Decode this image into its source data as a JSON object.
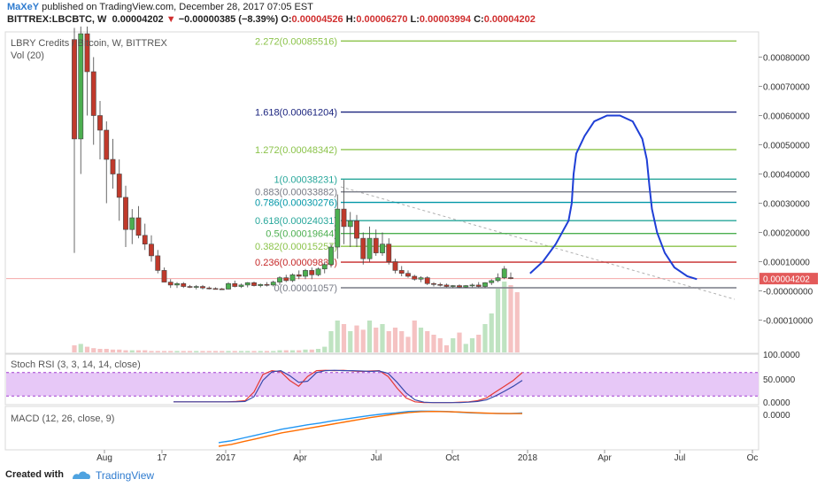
{
  "header": {
    "author": "MaXeY",
    "published": "published on TradingView.com, December 28, 2017 07:05 EST",
    "symbol": "BITTREX:LBCBTC, W",
    "last": "0.00004202",
    "arrow": "▼",
    "change": "−0.00000385 (−8.39%)",
    "o_label": "O:",
    "o": "0.00004526",
    "h_label": "H:",
    "h": "0.00006270",
    "l_label": "L:",
    "l": "0.00003994",
    "c_label": "C:",
    "c": "0.00004202"
  },
  "footer": {
    "created": "Created with",
    "brand": "TradingView"
  },
  "colors": {
    "up": "#4caf50",
    "down": "#c0392b",
    "rsi_fill": "#e7c8f7",
    "macd_line": "#2196f3",
    "signal_line": "#ff6d00"
  },
  "chart_data": [
    {
      "type": "candlestick",
      "legend": [
        "LBRY Credits / Bitcoin, W, BITTREX",
        "Vol (20)"
      ],
      "y_ticks": [
        "0.00080000",
        "0.00070000",
        "0.00060000",
        "0.00050000",
        "0.00040000",
        "0.00030000",
        "0.00020000",
        "0.00010000",
        "0.00004202",
        "-0.00000000",
        "-0.00010000"
      ],
      "ylim": [
        -0.00015,
        0.00085
      ],
      "last_price_label": "0.00004202",
      "x_ticks": [
        "Aug",
        "17",
        "2017",
        "Apr",
        "Jul",
        "Oct",
        "2018",
        "Apr",
        "Jul",
        "Oc"
      ],
      "fib_levels": [
        {
          "label": "2.272(0.00085516)",
          "value": 0.00085516,
          "color": "#8bc34a"
        },
        {
          "label": "1.618(0.00061204)",
          "value": 0.00061204,
          "color": "#1a237e"
        },
        {
          "label": "1.272(0.00048342)",
          "value": 0.00048342,
          "color": "#8bc34a"
        },
        {
          "label": "1(0.00038231)",
          "value": 0.00038231,
          "color": "#26a69a"
        },
        {
          "label": "0.883(0.00033882)",
          "value": 0.00033882,
          "color": "#787b86"
        },
        {
          "label": "0.786(0.00030276)",
          "value": 0.00030276,
          "color": "#0097a7"
        },
        {
          "label": "0.618(0.00024031)",
          "value": 0.00024031,
          "color": "#26a69a"
        },
        {
          "label": "0.5(0.00019644)",
          "value": 0.00019644,
          "color": "#4caf50"
        },
        {
          "label": "0.382(0.00015257)",
          "value": 0.00015257,
          "color": "#8bc34a"
        },
        {
          "label": "0.236(0.00009830)",
          "value": 9.83e-05,
          "color": "#c62828"
        },
        {
          "label": "0(0.00001057)",
          "value": 1.057e-05,
          "color": "#787b86"
        }
      ],
      "candles": [
        {
          "o": 0.00086,
          "h": 0.0009,
          "l": 0.00013,
          "c": 0.00052
        },
        {
          "o": 0.00052,
          "h": 0.00092,
          "l": 0.0004,
          "c": 0.00088
        },
        {
          "o": 0.00088,
          "h": 0.00095,
          "l": 0.0006,
          "c": 0.00075
        },
        {
          "o": 0.00075,
          "h": 0.0008,
          "l": 0.0005,
          "c": 0.0006
        },
        {
          "o": 0.0006,
          "h": 0.00065,
          "l": 0.00045,
          "c": 0.00055
        },
        {
          "o": 0.00055,
          "h": 0.00058,
          "l": 0.0003,
          "c": 0.00045
        },
        {
          "o": 0.00045,
          "h": 0.00052,
          "l": 0.00035,
          "c": 0.0004
        },
        {
          "o": 0.0004,
          "h": 0.00045,
          "l": 0.00024,
          "c": 0.00032
        },
        {
          "o": 0.00032,
          "h": 0.00036,
          "l": 0.00015,
          "c": 0.00021
        },
        {
          "o": 0.00021,
          "h": 0.00028,
          "l": 0.00016,
          "c": 0.00025
        },
        {
          "o": 0.00025,
          "h": 0.00029,
          "l": 0.00018,
          "c": 0.00019
        },
        {
          "o": 0.00019,
          "h": 0.00023,
          "l": 0.00014,
          "c": 0.00016
        },
        {
          "o": 0.00016,
          "h": 0.00019,
          "l": 0.0001,
          "c": 0.00012
        },
        {
          "o": 0.00012,
          "h": 0.00014,
          "l": 6e-05,
          "c": 7e-05
        },
        {
          "o": 7e-05,
          "h": 8e-05,
          "l": 3e-05,
          "c": 3e-05
        },
        {
          "o": 3e-05,
          "h": 4e-05,
          "l": 1e-05,
          "c": 2e-05
        },
        {
          "o": 2e-05,
          "h": 3e-05,
          "l": 1e-05,
          "c": 2.5e-05
        },
        {
          "o": 2.5e-05,
          "h": 3e-05,
          "l": 1e-05,
          "c": 1.5e-05
        },
        {
          "o": 1.5e-05,
          "h": 2e-05,
          "l": 1e-05,
          "c": 1.2e-05
        },
        {
          "o": 1.2e-05,
          "h": 2e-05,
          "l": 5e-06,
          "c": 1.5e-05
        },
        {
          "o": 1.5e-05,
          "h": 2e-05,
          "l": 5e-06,
          "c": 1e-05
        },
        {
          "o": 1e-05,
          "h": 1.5e-05,
          "l": 5e-06,
          "c": 8e-06
        },
        {
          "o": 8e-06,
          "h": 1.2e-05,
          "l": 5e-06,
          "c": 7e-06
        },
        {
          "o": 7e-06,
          "h": 1e-05,
          "l": 5e-06,
          "c": 6e-06
        },
        {
          "o": 6e-06,
          "h": 3e-05,
          "l": 5e-06,
          "c": 2.5e-05
        },
        {
          "o": 2.5e-05,
          "h": 3.5e-05,
          "l": 1.2e-05,
          "c": 1.5e-05
        },
        {
          "o": 1.5e-05,
          "h": 2.5e-05,
          "l": 1e-05,
          "c": 2e-05
        },
        {
          "o": 2e-05,
          "h": 3e-05,
          "l": 1.2e-05,
          "c": 2.8e-05
        },
        {
          "o": 2.8e-05,
          "h": 3.2e-05,
          "l": 1.5e-05,
          "c": 1.8e-05
        },
        {
          "o": 1.8e-05,
          "h": 2.5e-05,
          "l": 1.2e-05,
          "c": 2.2e-05
        },
        {
          "o": 2.2e-05,
          "h": 3e-05,
          "l": 1.5e-05,
          "c": 2e-05
        },
        {
          "o": 2e-05,
          "h": 3.5e-05,
          "l": 1.5e-05,
          "c": 3e-05
        },
        {
          "o": 3e-05,
          "h": 5e-05,
          "l": 2e-05,
          "c": 4.5e-05
        },
        {
          "o": 4.5e-05,
          "h": 5.5e-05,
          "l": 3e-05,
          "c": 3.5e-05
        },
        {
          "o": 3.5e-05,
          "h": 6e-05,
          "l": 3e-05,
          "c": 5.5e-05
        },
        {
          "o": 5.5e-05,
          "h": 7e-05,
          "l": 4e-05,
          "c": 5e-05
        },
        {
          "o": 5e-05,
          "h": 7.5e-05,
          "l": 4e-05,
          "c": 7e-05
        },
        {
          "o": 7e-05,
          "h": 8e-05,
          "l": 4e-05,
          "c": 5.5e-05
        },
        {
          "o": 5.5e-05,
          "h": 8e-05,
          "l": 5e-05,
          "c": 7.5e-05
        },
        {
          "o": 7.5e-05,
          "h": 0.0001,
          "l": 6e-05,
          "c": 9e-05
        },
        {
          "o": 9e-05,
          "h": 0.00016,
          "l": 8e-05,
          "c": 0.00015
        },
        {
          "o": 0.00015,
          "h": 0.00033,
          "l": 0.00011,
          "c": 0.00028
        },
        {
          "o": 0.00028,
          "h": 0.00038,
          "l": 0.00016,
          "c": 0.00022
        },
        {
          "o": 0.00022,
          "h": 0.00027,
          "l": 0.00015,
          "c": 0.00024
        },
        {
          "o": 0.00024,
          "h": 0.00026,
          "l": 0.00015,
          "c": 0.00018
        },
        {
          "o": 0.00018,
          "h": 0.0002,
          "l": 9e-05,
          "c": 0.00011
        },
        {
          "o": 0.00011,
          "h": 0.00022,
          "l": 0.0001,
          "c": 0.00018
        },
        {
          "o": 0.00018,
          "h": 0.00021,
          "l": 0.00012,
          "c": 0.00013
        },
        {
          "o": 0.00013,
          "h": 0.0002,
          "l": 0.00012,
          "c": 0.00016
        },
        {
          "o": 0.00016,
          "h": 0.00018,
          "l": 9e-05,
          "c": 0.0001
        },
        {
          "o": 0.0001,
          "h": 0.00011,
          "l": 6e-05,
          "c": 7e-05
        },
        {
          "o": 7e-05,
          "h": 8.5e-05,
          "l": 5e-05,
          "c": 6e-05
        },
        {
          "o": 6e-05,
          "h": 7e-05,
          "l": 4.5e-05,
          "c": 5e-05
        },
        {
          "o": 5e-05,
          "h": 5.5e-05,
          "l": 3.5e-05,
          "c": 4e-05
        },
        {
          "o": 4e-05,
          "h": 5e-05,
          "l": 3e-05,
          "c": 4.5e-05
        },
        {
          "o": 4.5e-05,
          "h": 5e-05,
          "l": 2e-05,
          "c": 2.5e-05
        },
        {
          "o": 2.5e-05,
          "h": 3e-05,
          "l": 1.5e-05,
          "c": 2.2e-05
        },
        {
          "o": 2.2e-05,
          "h": 2.8e-05,
          "l": 1.5e-05,
          "c": 2e-05
        },
        {
          "o": 2e-05,
          "h": 2.5e-05,
          "l": 1.2e-05,
          "c": 1.5e-05
        },
        {
          "o": 1.5e-05,
          "h": 2e-05,
          "l": 1e-05,
          "c": 1.8e-05
        },
        {
          "o": 1.8e-05,
          "h": 2.2e-05,
          "l": 1e-05,
          "c": 1.3e-05
        },
        {
          "o": 1.3e-05,
          "h": 2e-05,
          "l": 1e-05,
          "c": 1.8e-05
        },
        {
          "o": 1.8e-05,
          "h": 2.5e-05,
          "l": 1.2e-05,
          "c": 2e-05
        },
        {
          "o": 2e-05,
          "h": 3e-05,
          "l": 1.2e-05,
          "c": 1.5e-05
        },
        {
          "o": 1.5e-05,
          "h": 3e-05,
          "l": 1e-05,
          "c": 2.8e-05
        },
        {
          "o": 2.8e-05,
          "h": 4e-05,
          "l": 2e-05,
          "c": 3.5e-05
        },
        {
          "o": 3.5e-05,
          "h": 6e-05,
          "l": 3e-05,
          "c": 4.5e-05
        },
        {
          "o": 4.5e-05,
          "h": 8.5e-05,
          "l": 4e-05,
          "c": 7.5e-05
        },
        {
          "o": 4.526e-05,
          "h": 6.27e-05,
          "l": 3.994e-05,
          "c": 4.202e-05
        }
      ],
      "volume_ylim": [
        0,
        1
      ],
      "volume": [
        0.1,
        0.12,
        0.08,
        0.06,
        0.05,
        0.05,
        0.04,
        0.04,
        0.03,
        0.03,
        0.03,
        0.03,
        0.02,
        0.02,
        0.02,
        0.02,
        0.02,
        0.02,
        0.02,
        0.02,
        0.02,
        0.02,
        0.02,
        0.02,
        0.02,
        0.02,
        0.02,
        0.02,
        0.02,
        0.02,
        0.02,
        0.02,
        0.03,
        0.03,
        0.03,
        0.03,
        0.04,
        0.04,
        0.05,
        0.08,
        0.3,
        0.45,
        0.4,
        0.3,
        0.38,
        0.32,
        0.45,
        0.35,
        0.4,
        0.3,
        0.35,
        0.3,
        0.22,
        0.45,
        0.35,
        0.3,
        0.25,
        0.2,
        0.1,
        0.2,
        0.28,
        0.12,
        0.2,
        0.25,
        0.4,
        0.55,
        0.9,
        1.0,
        0.95,
        0.85
      ],
      "projection": [
        {
          "i": 71,
          "v": 6e-05
        },
        {
          "i": 73,
          "v": 0.0001
        },
        {
          "i": 75,
          "v": 0.00016
        },
        {
          "i": 77,
          "v": 0.00024
        },
        {
          "i": 77.5,
          "v": 0.0003
        },
        {
          "i": 77.8,
          "v": 0.0004
        },
        {
          "i": 78.2,
          "v": 0.00047
        },
        {
          "i": 79.5,
          "v": 0.00053
        },
        {
          "i": 81,
          "v": 0.00058
        },
        {
          "i": 83,
          "v": 0.0006
        },
        {
          "i": 85,
          "v": 0.0006
        },
        {
          "i": 87,
          "v": 0.00058
        },
        {
          "i": 88.5,
          "v": 0.00052
        },
        {
          "i": 89.2,
          "v": 0.00045
        },
        {
          "i": 89.6,
          "v": 0.00036
        },
        {
          "i": 90,
          "v": 0.00028
        },
        {
          "i": 90.8,
          "v": 0.0002
        },
        {
          "i": 92,
          "v": 0.00013
        },
        {
          "i": 93.5,
          "v": 8e-05
        },
        {
          "i": 95.5,
          "v": 5e-05
        },
        {
          "i": 97,
          "v": 4e-05
        }
      ]
    },
    {
      "type": "line",
      "legend": "Stoch RSI (3, 3, 14, 14, close)",
      "y_ticks": [
        "100.0000",
        "50.0000",
        "0.0000"
      ],
      "ylim": [
        0,
        100
      ],
      "band": [
        20,
        80
      ],
      "series": [
        {
          "values": [
            5,
            5,
            5,
            5,
            5,
            5,
            5,
            6,
            8,
            30,
            75,
            85,
            82,
            60,
            45,
            70,
            85,
            86,
            85,
            86,
            84,
            83,
            84,
            85,
            70,
            40,
            15,
            5,
            3,
            3,
            3,
            3,
            4,
            5,
            8,
            15,
            30,
            45,
            60,
            80
          ]
        },
        {
          "values": [
            5,
            5,
            5,
            5,
            5,
            5,
            5,
            5,
            6,
            18,
            60,
            82,
            85,
            72,
            55,
            58,
            80,
            85,
            86,
            85,
            85,
            84,
            83,
            84,
            78,
            55,
            28,
            10,
            4,
            3,
            3,
            3,
            3,
            4,
            6,
            10,
            20,
            32,
            45,
            60
          ]
        }
      ]
    },
    {
      "type": "line",
      "legend": "MACD (12, 26, close, 9)",
      "y_ticks": [
        "0.0000"
      ],
      "ylim": [
        -0.0001,
        1e-05
      ],
      "series": [
        {
          "values": [
            -8.5e-05,
            -8e-05,
            -7.2e-05,
            -6.4e-05,
            -5.6e-05,
            -4.8e-05,
            -4.2e-05,
            -3.6e-05,
            -3.1e-05,
            -2.5e-05,
            -2e-05,
            -1.5e-05,
            -1e-05,
            -6e-06,
            -3e-06,
            1e-06,
            2e-06,
            1.5e-06,
            1e-06,
            -1e-06,
            -3e-06,
            -4e-06,
            -4.5e-06,
            -5e-06,
            -3.5e-06
          ]
        },
        {
          "values": [
            -9.5e-05,
            -9e-05,
            -8.2e-05,
            -7.4e-05,
            -6.6e-05,
            -5.8e-05,
            -5.2e-05,
            -4.6e-05,
            -4e-05,
            -3.4e-05,
            -2.8e-05,
            -2.2e-05,
            -1.6e-05,
            -1.1e-05,
            -6e-06,
            -2e-06,
            5e-07,
            1e-06,
            5e-07,
            -5e-07,
            -2e-06,
            -3.5e-06,
            -4.5e-06,
            -5e-06,
            -5e-06
          ]
        }
      ]
    }
  ]
}
